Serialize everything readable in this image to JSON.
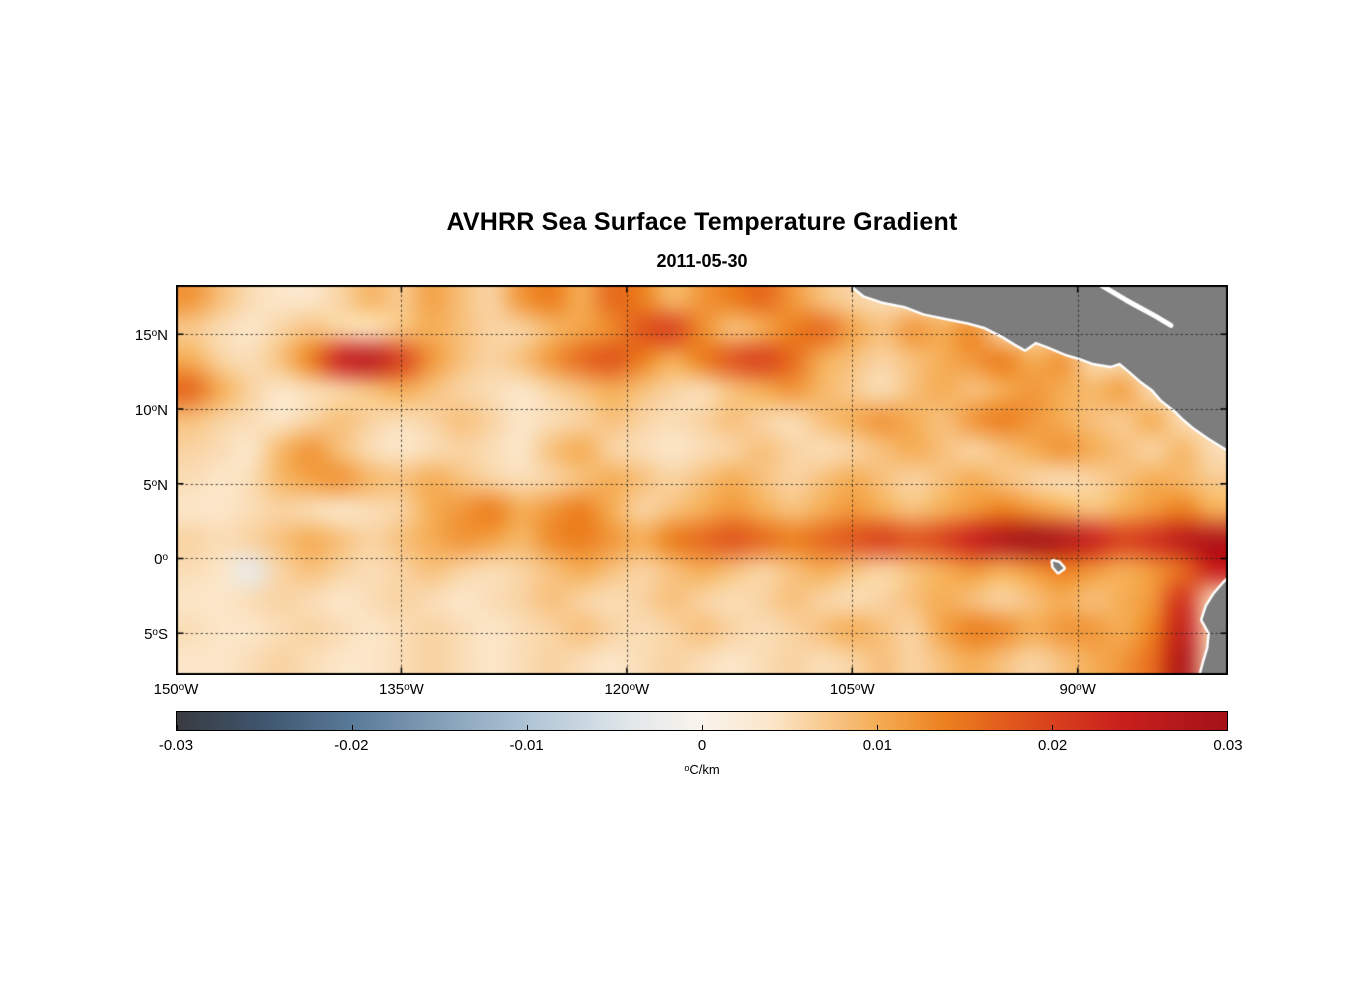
{
  "chart_data": {
    "type": "heatmap",
    "title": "AVHRR Sea Surface Temperature Gradient",
    "date_label": "2011-05-30",
    "x_axis": {
      "range": [
        -150,
        -80
      ],
      "ticks": [
        {
          "lon": -150,
          "num": "150",
          "sup": "o",
          "dir": "W"
        },
        {
          "lon": -135,
          "num": "135",
          "sup": "o",
          "dir": "W"
        },
        {
          "lon": -120,
          "num": "120",
          "sup": "o",
          "dir": "W"
        },
        {
          "lon": -105,
          "num": "105",
          "sup": "o",
          "dir": "W"
        },
        {
          "lon": -90,
          "num": "90",
          "sup": "o",
          "dir": "W"
        }
      ]
    },
    "y_axis": {
      "range": [
        18.3,
        -7.8
      ],
      "ticks": [
        {
          "lat": 15,
          "num": "15",
          "sup": "o",
          "dir": "N"
        },
        {
          "lat": 10,
          "num": "10",
          "sup": "o",
          "dir": "N"
        },
        {
          "lat": 5,
          "num": "5",
          "sup": "o",
          "dir": "N"
        },
        {
          "lat": 0,
          "num": "0",
          "sup": "o",
          "dir": ""
        },
        {
          "lat": -5,
          "num": "5",
          "sup": "o",
          "dir": "S"
        }
      ]
    },
    "gridlines": {
      "lons": [
        -135,
        -120,
        -105,
        -90
      ],
      "lats": [
        15,
        10,
        5,
        0,
        -5
      ],
      "style": "dotted",
      "color": "rgba(30,30,30,0.8)"
    },
    "grid": {
      "note": "SST gradient magnitude field, values in 0.001 degC/km, null = land; rows north to south",
      "lon_start": -149,
      "lon_step": 2,
      "lat_start": 17.5,
      "lat_step": -2,
      "value_scale": 0.001,
      "values": [
        [
          12,
          8,
          5,
          4,
          4,
          6,
          9,
          7,
          11,
          8,
          6,
          12,
          14,
          10,
          16,
          14,
          9,
          12,
          14,
          16,
          12,
          8,
          6,
          null,
          null,
          null,
          null,
          null,
          null,
          null,
          null,
          null,
          null,
          null,
          null
        ],
        [
          7,
          5,
          4,
          6,
          8,
          6,
          5,
          8,
          10,
          8,
          6,
          6,
          9,
          11,
          13,
          18,
          20,
          13,
          8,
          10,
          14,
          16,
          11,
          8,
          12,
          10,
          13,
          null,
          null,
          null,
          null,
          null,
          null,
          null,
          null
        ],
        [
          10,
          6,
          5,
          8,
          14,
          24,
          26,
          20,
          12,
          8,
          6,
          8,
          12,
          16,
          18,
          14,
          10,
          14,
          18,
          20,
          16,
          10,
          8,
          6,
          8,
          10,
          12,
          14,
          10,
          12,
          null,
          null,
          null,
          null,
          null
        ],
        [
          16,
          10,
          6,
          4,
          5,
          6,
          8,
          10,
          8,
          6,
          5,
          4,
          6,
          8,
          10,
          8,
          6,
          5,
          8,
          10,
          12,
          9,
          7,
          5,
          8,
          10,
          8,
          10,
          12,
          10,
          9,
          11,
          null,
          null,
          null
        ],
        [
          8,
          6,
          5,
          4,
          6,
          8,
          6,
          5,
          6,
          8,
          6,
          4,
          5,
          6,
          8,
          6,
          5,
          6,
          8,
          6,
          5,
          8,
          10,
          12,
          10,
          8,
          12,
          14,
          12,
          10,
          8,
          7,
          10,
          null,
          null
        ],
        [
          6,
          5,
          4,
          9,
          12,
          8,
          5,
          4,
          5,
          6,
          5,
          4,
          8,
          10,
          6,
          5,
          4,
          5,
          6,
          8,
          6,
          5,
          6,
          8,
          10,
          8,
          6,
          8,
          10,
          12,
          10,
          8,
          6,
          9,
          null
        ],
        [
          5,
          4,
          5,
          9,
          11,
          12,
          9,
          8,
          10,
          8,
          6,
          5,
          6,
          8,
          10,
          8,
          6,
          8,
          10,
          8,
          6,
          8,
          10,
          8,
          6,
          8,
          10,
          8,
          6,
          5,
          6,
          8,
          10,
          9,
          7
        ],
        [
          4,
          4,
          5,
          6,
          5,
          4,
          5,
          6,
          10,
          12,
          14,
          10,
          12,
          14,
          10,
          6,
          8,
          10,
          12,
          10,
          8,
          10,
          12,
          10,
          8,
          10,
          12,
          14,
          12,
          10,
          8,
          10,
          12,
          14,
          10
        ],
        [
          6,
          5,
          6,
          8,
          10,
          8,
          6,
          8,
          10,
          12,
          11,
          9,
          13,
          14,
          12,
          10,
          14,
          16,
          18,
          16,
          14,
          16,
          18,
          20,
          18,
          20,
          24,
          28,
          30,
          28,
          24,
          20,
          22,
          26,
          28
        ],
        [
          5,
          4,
          -3,
          6,
          8,
          6,
          5,
          6,
          8,
          6,
          5,
          6,
          8,
          10,
          8,
          6,
          8,
          10,
          8,
          6,
          8,
          10,
          8,
          6,
          8,
          10,
          12,
          10,
          12,
          14,
          12,
          10,
          12,
          16,
          24
        ],
        [
          4,
          4,
          5,
          6,
          5,
          4,
          5,
          6,
          5,
          4,
          5,
          6,
          8,
          6,
          5,
          6,
          8,
          6,
          5,
          6,
          8,
          6,
          5,
          6,
          8,
          10,
          8,
          6,
          8,
          10,
          8,
          10,
          12,
          22,
          null
        ],
        [
          5,
          4,
          4,
          5,
          6,
          5,
          4,
          5,
          6,
          5,
          4,
          5,
          6,
          8,
          6,
          5,
          6,
          8,
          6,
          5,
          6,
          8,
          10,
          8,
          6,
          11,
          14,
          13,
          10,
          12,
          12,
          10,
          14,
          25,
          null
        ],
        [
          4,
          4,
          5,
          6,
          5,
          4,
          4,
          5,
          6,
          5,
          4,
          5,
          6,
          5,
          4,
          5,
          6,
          5,
          4,
          5,
          6,
          5,
          6,
          8,
          6,
          8,
          10,
          8,
          6,
          8,
          10,
          12,
          16,
          28,
          null
        ]
      ]
    },
    "colormap": {
      "stops": [
        [
          -0.03,
          "#383b40"
        ],
        [
          -0.025,
          "#3f566e"
        ],
        [
          -0.02,
          "#597a99"
        ],
        [
          -0.01,
          "#aec4d5"
        ],
        [
          -0.004,
          "#e2e7ea"
        ],
        [
          0.0,
          "#faf4ec"
        ],
        [
          0.004,
          "#fbe6c9"
        ],
        [
          0.01,
          "#f5ad55"
        ],
        [
          0.014,
          "#ec7f1e"
        ],
        [
          0.019,
          "#dc4a1c"
        ],
        [
          0.024,
          "#c9201d"
        ],
        [
          0.03,
          "#a31218"
        ]
      ]
    },
    "colorbar": {
      "range": [
        -0.03,
        0.03
      ],
      "tick_values": [
        -0.03,
        -0.02,
        -0.01,
        0,
        0.01,
        0.02,
        0.03
      ],
      "tick_labels": [
        "-0.03",
        "-0.02",
        "-0.01",
        "0",
        "0.01",
        "0.02",
        "0.03"
      ],
      "unit_sup": "o",
      "unit_text": "C/km"
    },
    "land": {
      "fill": "#7d7d7d",
      "coast": "#ffffff",
      "polygons": [
        [
          [
            -105.3,
            18.5
          ],
          [
            -104.2,
            17.6
          ],
          [
            -103.0,
            17.2
          ],
          [
            -101.5,
            16.9
          ],
          [
            -100.2,
            16.4
          ],
          [
            -98.8,
            16.1
          ],
          [
            -97.3,
            15.8
          ],
          [
            -96.2,
            15.5
          ],
          [
            -95.0,
            14.9
          ],
          [
            -94.2,
            14.4
          ],
          [
            -93.5,
            14.0
          ],
          [
            -92.8,
            14.5
          ],
          [
            -92.0,
            14.2
          ],
          [
            -90.8,
            13.7
          ],
          [
            -89.8,
            13.4
          ],
          [
            -89.0,
            13.1
          ],
          [
            -87.8,
            12.9
          ],
          [
            -87.2,
            13.1
          ],
          [
            -86.6,
            12.6
          ],
          [
            -85.8,
            11.9
          ],
          [
            -85.0,
            11.3
          ],
          [
            -84.4,
            10.6
          ],
          [
            -83.5,
            9.9
          ],
          [
            -83.0,
            9.4
          ],
          [
            -82.3,
            8.8
          ],
          [
            -81.3,
            8.1
          ],
          [
            -80.5,
            7.6
          ],
          [
            -79.7,
            7.1
          ],
          [
            -79.7,
            18.5
          ]
        ],
        [
          [
            -79.7,
            -1.1
          ],
          [
            -80.3,
            -1.7
          ],
          [
            -80.9,
            -2.4
          ],
          [
            -81.4,
            -3.2
          ],
          [
            -81.7,
            -4.1
          ],
          [
            -81.2,
            -5.0
          ],
          [
            -81.3,
            -6.0
          ],
          [
            -81.6,
            -7.0
          ],
          [
            -81.9,
            -8.1
          ],
          [
            -79.7,
            -8.1
          ]
        ],
        [
          [
            -91.65,
            -0.2
          ],
          [
            -91.25,
            -0.3
          ],
          [
            -90.95,
            -0.65
          ],
          [
            -91.3,
            -0.9
          ],
          [
            -91.6,
            -0.55
          ]
        ]
      ],
      "coast_lines": [
        [
          [
            -88.8,
            18.5
          ],
          [
            -86.8,
            17.3
          ],
          [
            -84.8,
            16.2
          ],
          [
            -83.8,
            15.6
          ]
        ]
      ]
    }
  }
}
